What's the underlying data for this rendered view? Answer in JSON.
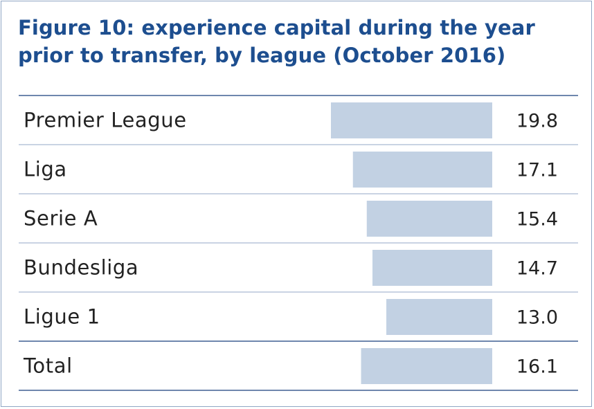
{
  "chart_data": {
    "type": "bar",
    "orientation": "horizontal",
    "title": "Figure 10: experience capital during the year prior to transfer, by league (October 2016)",
    "categories": [
      "Premier League",
      "Liga",
      "Serie A",
      "Bundesliga",
      "Ligue 1",
      "Total"
    ],
    "values": [
      19.8,
      17.1,
      15.4,
      14.7,
      13.0,
      16.1
    ],
    "value_labels": [
      "19.8",
      "17.1",
      "15.4",
      "14.7",
      "13.0",
      "16.1"
    ],
    "xlim": [
      0,
      19.8
    ],
    "grid": false,
    "legend": "none",
    "bar_color": "#c2d1e3",
    "title_color": "#1d4e8f",
    "rule_color": "#6e86ad"
  }
}
